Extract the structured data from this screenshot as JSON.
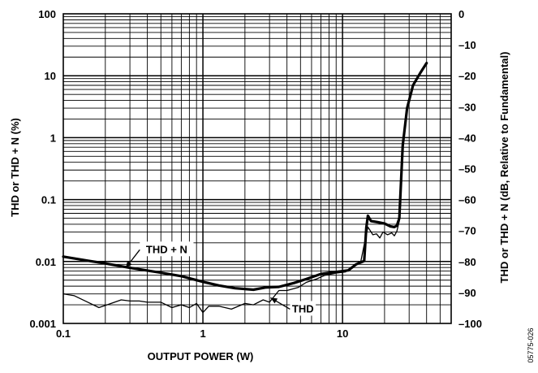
{
  "chart_data": {
    "type": "line",
    "xlabel": "OUTPUT POWER (W)",
    "ylabel": "THD or THD + N (%)",
    "ylabel_right": "THD or THD + N (dB, Relative to Fundamental)",
    "figure_id": "05775-026",
    "x_scale": "log",
    "y_scale": "log",
    "xlim": [
      0.1,
      60
    ],
    "ylim": [
      0.001,
      100
    ],
    "ylim_right": [
      -100,
      0
    ],
    "grid": true,
    "x_tick_labels": [
      {
        "value": 0.1,
        "label": "0.1"
      },
      {
        "value": 1,
        "label": "1"
      },
      {
        "value": 10,
        "label": "10"
      }
    ],
    "y_tick_labels": [
      {
        "value": 0.001,
        "label": "0.001"
      },
      {
        "value": 0.01,
        "label": "0.01"
      },
      {
        "value": 0.1,
        "label": "0.1"
      },
      {
        "value": 1,
        "label": "1"
      },
      {
        "value": 10,
        "label": "10"
      },
      {
        "value": 100,
        "label": "100"
      }
    ],
    "y_right_tick_labels": [
      {
        "value": 0,
        "label": "0"
      },
      {
        "value": -10,
        "label": "–10"
      },
      {
        "value": -20,
        "label": "–20"
      },
      {
        "value": -30,
        "label": "–30"
      },
      {
        "value": -40,
        "label": "–40"
      },
      {
        "value": -50,
        "label": "–50"
      },
      {
        "value": -60,
        "label": "–60"
      },
      {
        "value": -70,
        "label": "–70"
      },
      {
        "value": -80,
        "label": "–80"
      },
      {
        "value": -90,
        "label": "–90"
      },
      {
        "value": -100,
        "label": "–100"
      }
    ],
    "series": [
      {
        "name": "THD + N",
        "stroke_width": 3.2,
        "x": [
          0.1,
          0.15,
          0.2,
          0.3,
          0.5,
          0.7,
          1.0,
          1.3,
          1.7,
          2.3,
          2.8,
          3.5,
          4.5,
          5.5,
          7,
          9,
          11,
          12.5,
          14.3,
          14.8,
          15.2,
          16,
          18,
          20,
          22,
          23.5,
          24.5,
          25.5,
          27,
          29,
          32,
          36,
          40
        ],
        "y": [
          0.012,
          0.0103,
          0.0093,
          0.0079,
          0.0066,
          0.0058,
          0.0047,
          0.0041,
          0.0037,
          0.0035,
          0.0038,
          0.0039,
          0.0045,
          0.0052,
          0.0063,
          0.0068,
          0.0072,
          0.009,
          0.0102,
          0.035,
          0.055,
          0.045,
          0.043,
          0.041,
          0.037,
          0.036,
          0.038,
          0.05,
          0.75,
          3,
          7,
          11,
          16
        ]
      },
      {
        "name": "THD",
        "stroke_width": 1.3,
        "x": [
          0.1,
          0.12,
          0.15,
          0.18,
          0.22,
          0.26,
          0.3,
          0.35,
          0.4,
          0.45,
          0.5,
          0.6,
          0.7,
          0.8,
          0.9,
          1.0,
          1.1,
          1.3,
          1.6,
          2.0,
          2.3,
          2.7,
          3.0,
          3.5,
          4.0,
          4.8,
          5.5,
          6.5,
          7.5,
          9,
          10.5,
          12,
          13.5,
          14.5,
          15.2,
          16.5,
          17.5,
          18.5,
          19.5,
          21,
          22.5,
          23.5,
          24.5,
          25.5,
          27,
          29,
          32,
          36,
          40
        ],
        "y": [
          0.003,
          0.0028,
          0.0022,
          0.0018,
          0.0021,
          0.0024,
          0.0023,
          0.0023,
          0.0022,
          0.0022,
          0.0022,
          0.0018,
          0.002,
          0.0018,
          0.0021,
          0.0015,
          0.0019,
          0.0019,
          0.0017,
          0.0021,
          0.002,
          0.0024,
          0.0022,
          0.0034,
          0.0034,
          0.0038,
          0.0046,
          0.0052,
          0.006,
          0.0065,
          0.0068,
          0.0085,
          0.0098,
          0.022,
          0.036,
          0.027,
          0.028,
          0.024,
          0.03,
          0.027,
          0.029,
          0.026,
          0.031,
          0.045,
          0.75,
          3,
          7,
          11,
          16
        ]
      }
    ],
    "annotations": [
      {
        "text": "THD + N",
        "series": "THD + N",
        "at": [
          0.28,
          0.0079
        ],
        "label_at": [
          0.55,
          0.0155
        ]
      },
      {
        "text": "THD",
        "series": "THD",
        "at": [
          3.05,
          0.0026
        ],
        "label_at": [
          5.2,
          0.0017
        ]
      }
    ]
  }
}
